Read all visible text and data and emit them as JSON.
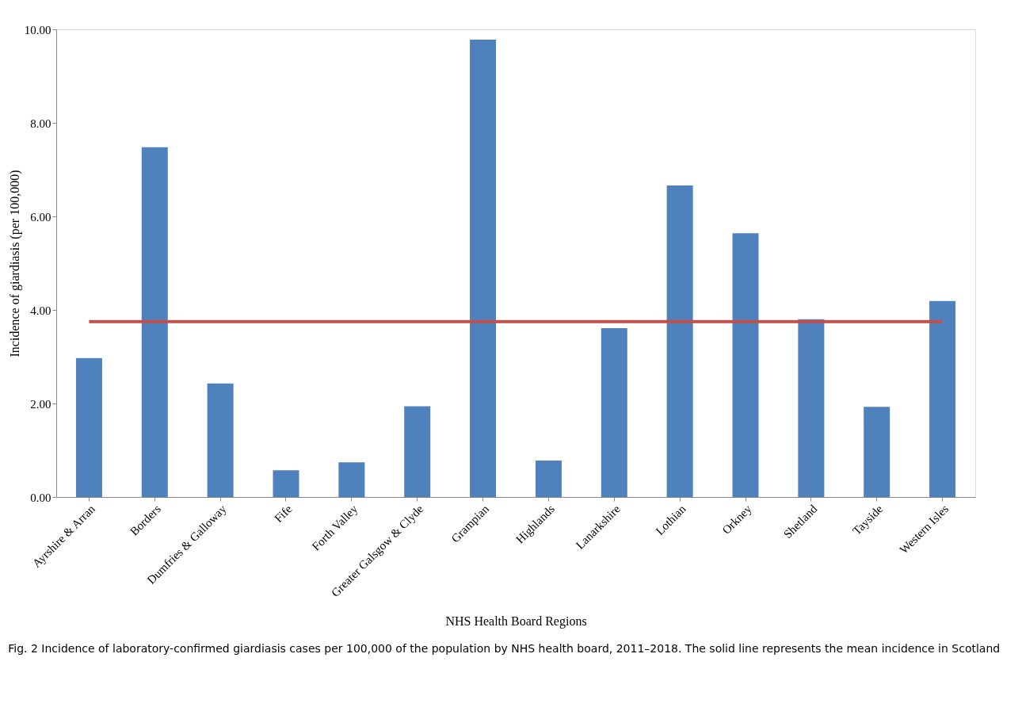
{
  "chart_data": {
    "type": "bar",
    "xlabel": "NHS  Health Board Regions",
    "ylabel": "Incidence of giardiasis (per 100,000)",
    "categories": [
      "Ayrshire & Arran",
      "Borders",
      "Dumfries & Galloway",
      "Fife",
      "Forth Valley",
      "Greater Galsgow & Clyde",
      "Grampian",
      "Highlands",
      "Lanarkshire",
      "Lothian",
      "Orkney",
      "Shetland",
      "Tayside",
      "Western Isles"
    ],
    "values": [
      2.97,
      7.48,
      2.43,
      0.57,
      0.74,
      1.94,
      9.78,
      0.78,
      3.61,
      6.66,
      5.64,
      3.8,
      1.93,
      4.19
    ],
    "color": "#4f81bd",
    "ylim": [
      0,
      10
    ],
    "yticks": [
      {
        "value": 0,
        "label": "0.00"
      },
      {
        "value": 2,
        "label": "2.00"
      },
      {
        "value": 4,
        "label": "4.00"
      },
      {
        "value": 6,
        "label": "6.00"
      },
      {
        "value": 8,
        "label": "8.00"
      },
      {
        "value": 10,
        "label": "10.00"
      }
    ],
    "ref_lines": [
      {
        "axis": "y",
        "value": 3.75,
        "color": "#c0504d",
        "line_style": "solid"
      }
    ],
    "grid": false,
    "annotations": [
      "Fig. 2  Incidence of laboratory-confirmed giardiasis cases per 100,000 of the population by NHS health board, 2011–2018. The solid line represents the mean incidence in Scotland"
    ]
  }
}
